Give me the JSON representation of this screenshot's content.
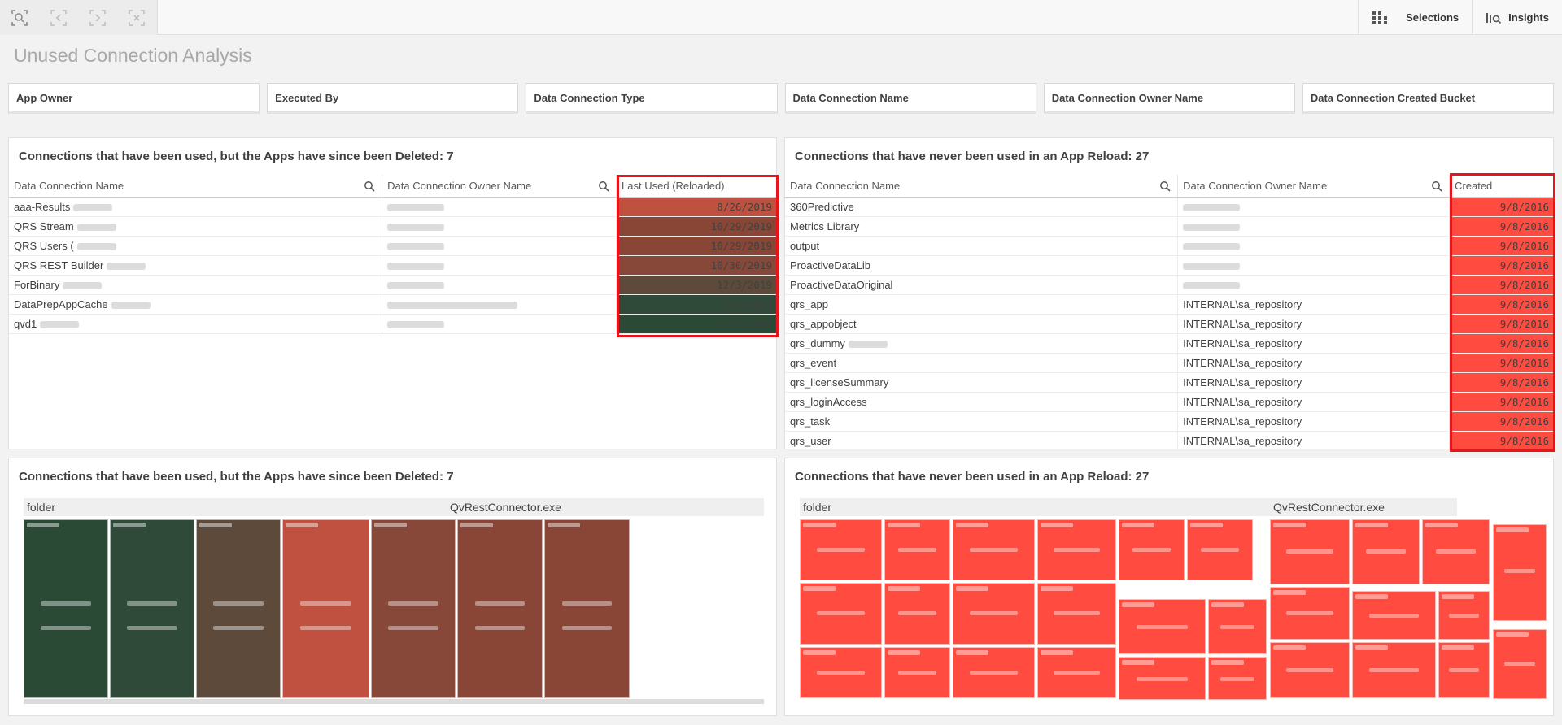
{
  "toolbar": {
    "tools": [
      "smart-search-icon",
      "step-back-icon",
      "step-forward-icon",
      "clear-selections-icon"
    ],
    "selections_label": "Selections",
    "insights_label": "Insights"
  },
  "sheet": {
    "title": "Unused Connection Analysis"
  },
  "filters": [
    "App Owner",
    "Executed By",
    "Data Connection Type",
    "Data Connection Name",
    "Data Connection Owner Name",
    "Data Connection Created Bucket"
  ],
  "table_left": {
    "title": "Connections that have been used, but the Apps have since been Deleted: 7",
    "columns": [
      "Data Connection Name",
      "Data Connection Owner Name",
      "Last Used (Reloaded)"
    ],
    "rows": [
      {
        "name": "aaa-Results",
        "owner": "",
        "date": "8/26/2019",
        "color": "#c0503f"
      },
      {
        "name": "QRS Stream",
        "owner": "",
        "date": "10/29/2019",
        "color": "#894636"
      },
      {
        "name": "QRS Users (",
        "owner": "",
        "date": "10/29/2019",
        "color": "#894636"
      },
      {
        "name": "QRS REST Builder",
        "owner": "",
        "date": "10/30/2019",
        "color": "#87483a"
      },
      {
        "name": "ForBinary",
        "owner": "",
        "date": "12/3/2019",
        "color": "#5d4a3b"
      },
      {
        "name": "DataPrepAppCache",
        "owner": "",
        "date": "1/9/2020",
        "color": "#2f4a38"
      },
      {
        "name": "qvd1",
        "owner": "",
        "date": "1/27/2020",
        "color": "#2b4a36"
      }
    ]
  },
  "table_right": {
    "title": "Connections that have never been used in an App Reload: 27",
    "columns": [
      "Data Connection Name",
      "Data Connection Owner Name",
      "Created"
    ],
    "rows": [
      {
        "name": "360Predictive",
        "owner": "",
        "date": "9/8/2016"
      },
      {
        "name": "Metrics Library",
        "owner": "",
        "date": "9/8/2016"
      },
      {
        "name": "output",
        "owner": "",
        "date": "9/8/2016"
      },
      {
        "name": "ProactiveDataLib",
        "owner": "",
        "date": "9/8/2016"
      },
      {
        "name": "ProactiveDataOriginal",
        "owner": "",
        "date": "9/8/2016"
      },
      {
        "name": "qrs_app",
        "owner": "INTERNAL\\sa_repository",
        "date": "9/8/2016"
      },
      {
        "name": "qrs_appobject",
        "owner": "INTERNAL\\sa_repository",
        "date": "9/8/2016"
      },
      {
        "name": "qrs_dummy",
        "owner": "INTERNAL\\sa_repository",
        "date": "9/8/2016"
      },
      {
        "name": "qrs_event",
        "owner": "INTERNAL\\sa_repository",
        "date": "9/8/2016"
      },
      {
        "name": "qrs_licenseSummary",
        "owner": "INTERNAL\\sa_repository",
        "date": "9/8/2016"
      },
      {
        "name": "qrs_loginAccess",
        "owner": "INTERNAL\\sa_repository",
        "date": "9/8/2016"
      },
      {
        "name": "qrs_task",
        "owner": "INTERNAL\\sa_repository",
        "date": "9/8/2016"
      },
      {
        "name": "qrs_user",
        "owner": "INTERNAL\\sa_repository",
        "date": "9/8/2016"
      }
    ],
    "cell_color": "#ff4b40"
  },
  "treemap_left": {
    "title": "Connections that have been used, but the Apps have since been Deleted: 7",
    "groups": [
      "folder",
      "QvRestConnector.exe"
    ]
  },
  "treemap_right": {
    "title": "Connections that have never been used in an App Reload: 27",
    "groups": [
      "folder",
      "QvRestConnector.exe"
    ],
    "tile_color": "#ff4b40"
  }
}
